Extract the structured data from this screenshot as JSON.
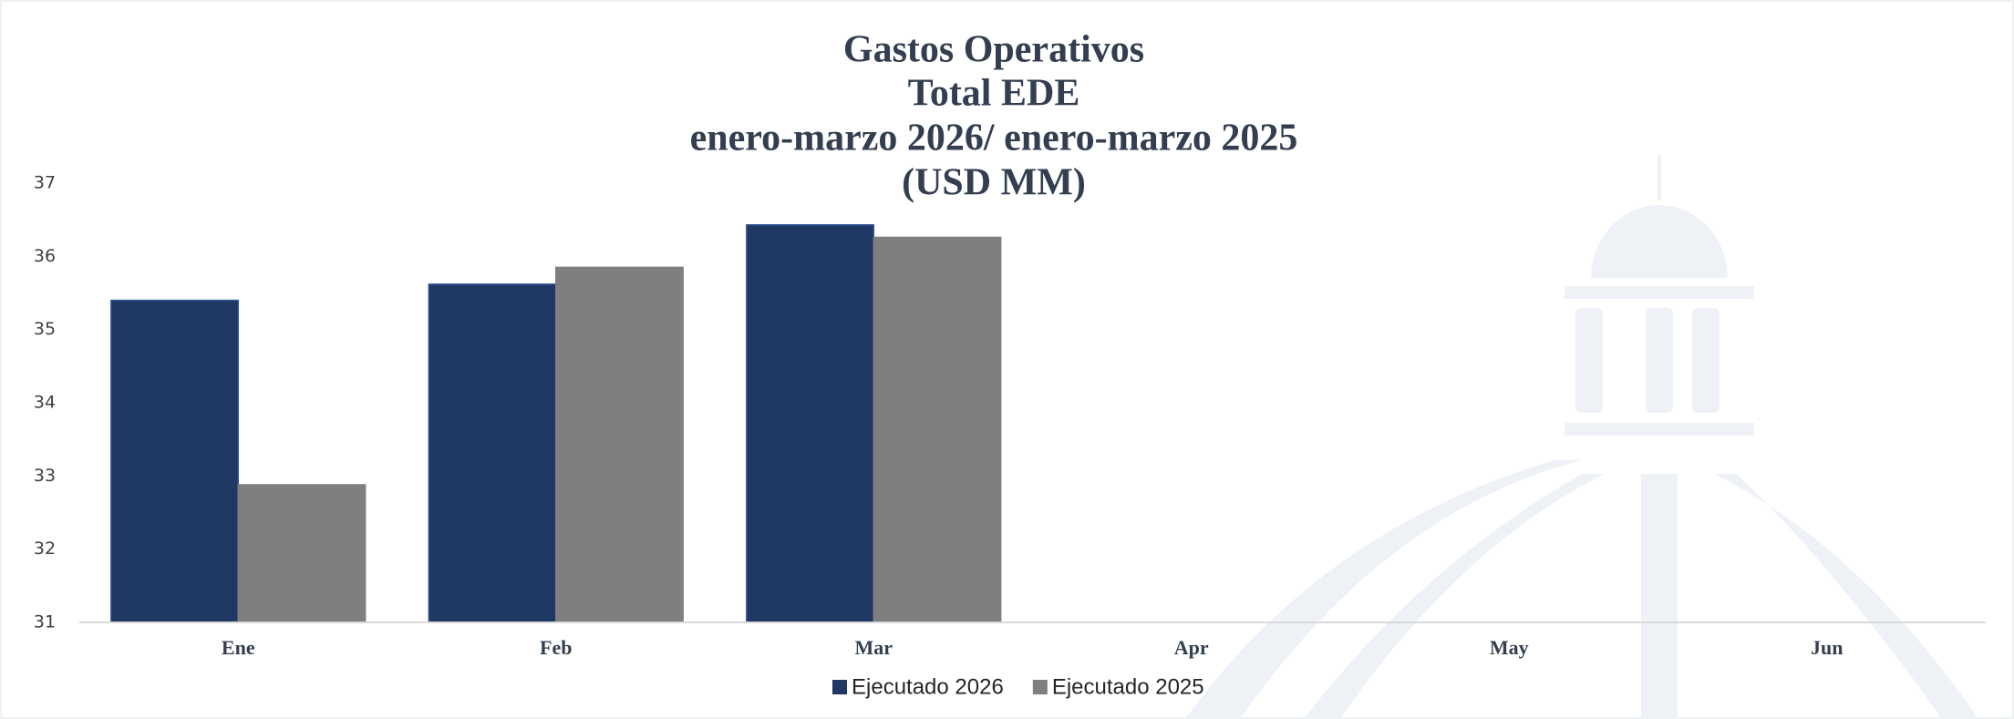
{
  "chart_data": {
    "type": "bar",
    "title": [
      "Gastos Operativos",
      "Total EDE",
      "enero-marzo 2026/ enero-marzo 2025",
      "(USD MM)"
    ],
    "categories": [
      "Ene",
      "Feb",
      "Mar",
      "Apr",
      "May",
      "Jun"
    ],
    "series": [
      {
        "name": "Ejecutado 2026",
        "color": "#203864",
        "values": [
          35.4,
          35.62,
          36.43,
          null,
          null,
          null
        ]
      },
      {
        "name": "Ejecutado 2025",
        "color": "#7f7f7f",
        "values": [
          32.88,
          35.85,
          36.26,
          null,
          null,
          null
        ]
      }
    ],
    "ylim": [
      31,
      37
    ],
    "yticks": [
      31,
      32,
      33,
      34,
      35,
      36,
      37
    ],
    "grid": false,
    "legend": "bottom"
  }
}
